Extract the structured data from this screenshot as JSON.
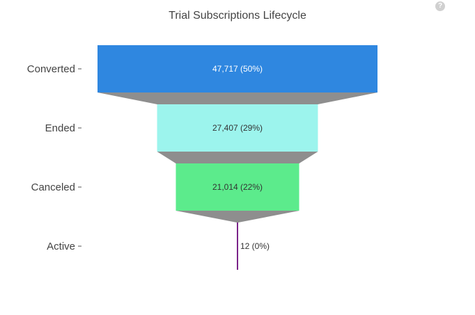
{
  "help_icon_glyph": "?",
  "chart_data": {
    "type": "funnel",
    "title": "Trial Subscriptions Lifecycle",
    "categories": [
      "Converted",
      "Ended",
      "Canceled",
      "Active"
    ],
    "values": [
      47717,
      27407,
      21014,
      12
    ],
    "percents": [
      50,
      29,
      22,
      0
    ],
    "labels": [
      "47,717 (50%)",
      "27,407 (29%)",
      "21,014 (22%)",
      "12 (0%)"
    ],
    "colors": [
      "#2f87e0",
      "#9cf4ed",
      "#5ceb8c",
      "#7a2389"
    ],
    "label_colors": [
      "#ffffff",
      "#333333",
      "#333333",
      "#333333"
    ],
    "connector_color": "#8e8e8e"
  }
}
